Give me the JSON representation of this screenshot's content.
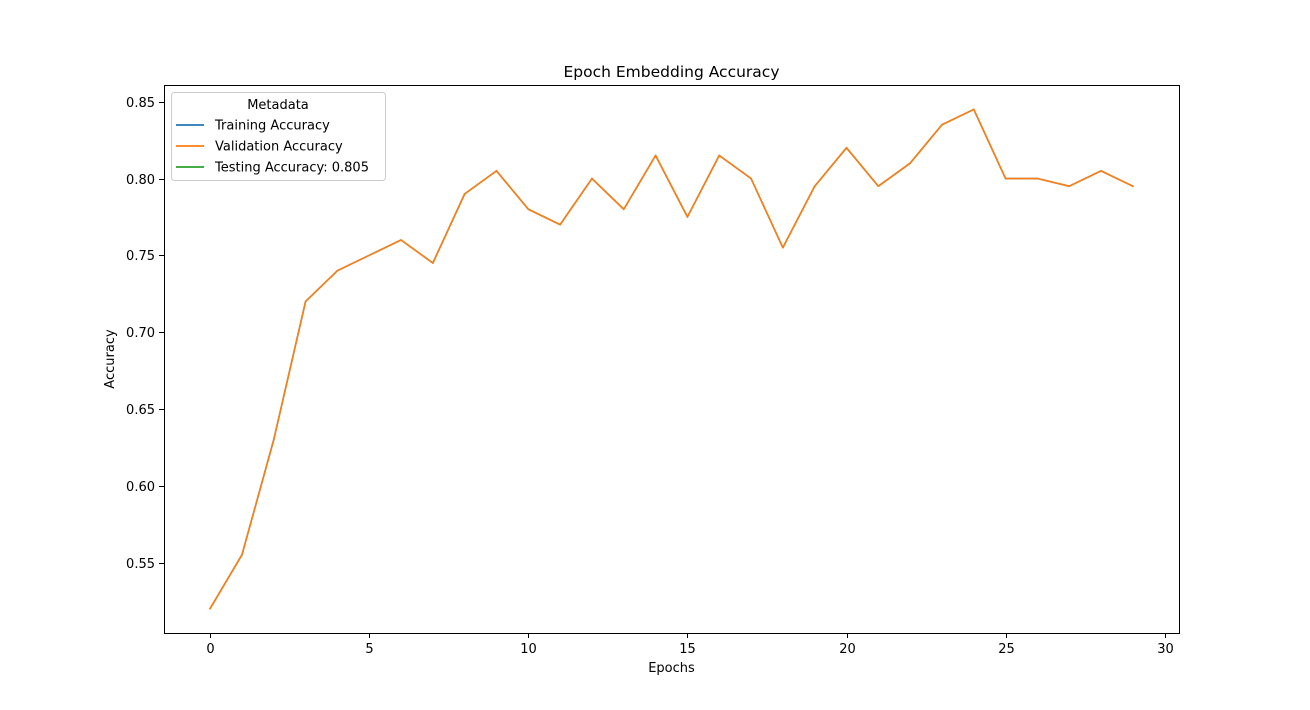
{
  "chart_data": {
    "type": "line",
    "title": "Epoch Embedding Accuracy",
    "xlabel": "Epochs",
    "ylabel": "Accuracy",
    "xlim": [
      -1.45,
      30.45
    ],
    "ylim": [
      0.5041,
      0.8609
    ],
    "xticks": [
      0,
      5,
      10,
      15,
      20,
      25,
      30
    ],
    "xtick_labels": [
      "0",
      "5",
      "10",
      "15",
      "20",
      "25",
      "30"
    ],
    "yticks": [
      0.55,
      0.6,
      0.65,
      0.7,
      0.75,
      0.8,
      0.85
    ],
    "ytick_labels": [
      "0.55",
      "0.60",
      "0.65",
      "0.70",
      "0.75",
      "0.80",
      "0.85"
    ],
    "grid": false,
    "legend": {
      "title": "Metadata",
      "placement": "top-left",
      "entries": [
        "Training Accuracy",
        "Validation Accuracy",
        "Testing Accuracy: 0.805"
      ]
    },
    "series": [
      {
        "name": "Training Accuracy",
        "color": "#1f77b4",
        "x": [
          0,
          1,
          2,
          3,
          4,
          5,
          6,
          7,
          8,
          9,
          10,
          11,
          12,
          13,
          14,
          15,
          16,
          17,
          18,
          19,
          20,
          21,
          22,
          23,
          24,
          25,
          26,
          27,
          28,
          29
        ],
        "values": [
          0.52,
          0.555,
          0.63,
          0.72,
          0.74,
          0.75,
          0.76,
          0.745,
          0.79,
          0.805,
          0.78,
          0.77,
          0.8,
          0.78,
          0.815,
          0.775,
          0.815,
          0.8,
          0.755,
          0.795,
          0.82,
          0.795,
          0.81,
          0.835,
          0.845,
          0.8,
          0.8,
          0.795,
          0.805,
          0.795
        ]
      },
      {
        "name": "Validation Accuracy",
        "color": "#ff7f0e",
        "x": [
          0,
          1,
          2,
          3,
          4,
          5,
          6,
          7,
          8,
          9,
          10,
          11,
          12,
          13,
          14,
          15,
          16,
          17,
          18,
          19,
          20,
          21,
          22,
          23,
          24,
          25,
          26,
          27,
          28,
          29
        ],
        "values": [
          0.52,
          0.555,
          0.63,
          0.72,
          0.74,
          0.75,
          0.76,
          0.745,
          0.79,
          0.805,
          0.78,
          0.77,
          0.8,
          0.78,
          0.815,
          0.775,
          0.815,
          0.8,
          0.755,
          0.795,
          0.82,
          0.795,
          0.81,
          0.835,
          0.845,
          0.8,
          0.8,
          0.795,
          0.805,
          0.795
        ]
      },
      {
        "name": "Testing Accuracy: 0.805",
        "color": "#2ca02c",
        "x": [],
        "values": []
      }
    ]
  }
}
